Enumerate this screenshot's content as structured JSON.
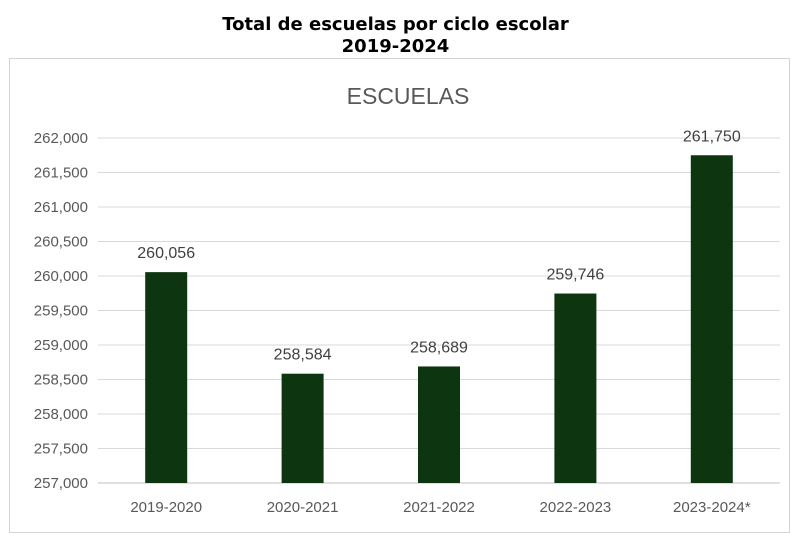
{
  "header": {
    "title_line1": "Total de escuelas por ciclo escolar",
    "title_line2": "2019-2024"
  },
  "chart_data": {
    "type": "bar",
    "title": "ESCUELAS",
    "categories": [
      "2019-2020",
      "2020-2021",
      "2021-2022",
      "2022-2023",
      "2023-2024*"
    ],
    "series": [
      {
        "values": [
          260056,
          258584,
          258689,
          259746,
          261750
        ],
        "color": "#0d3510"
      }
    ],
    "data_labels": [
      "260,056",
      "258,584",
      "258,689",
      "259,746",
      "261,750"
    ],
    "ylim": [
      257000,
      262000
    ],
    "yticks": [
      257000,
      257500,
      258000,
      258500,
      259000,
      259500,
      260000,
      260500,
      261000,
      261500,
      262000
    ],
    "ytick_labels": [
      "257,000",
      "257,500",
      "258,000",
      "258,500",
      "259,000",
      "259,500",
      "260,000",
      "260,500",
      "261,000",
      "261,500",
      "262,000"
    ],
    "xlabel": "",
    "ylabel": "",
    "grid": true,
    "legend": "none"
  }
}
